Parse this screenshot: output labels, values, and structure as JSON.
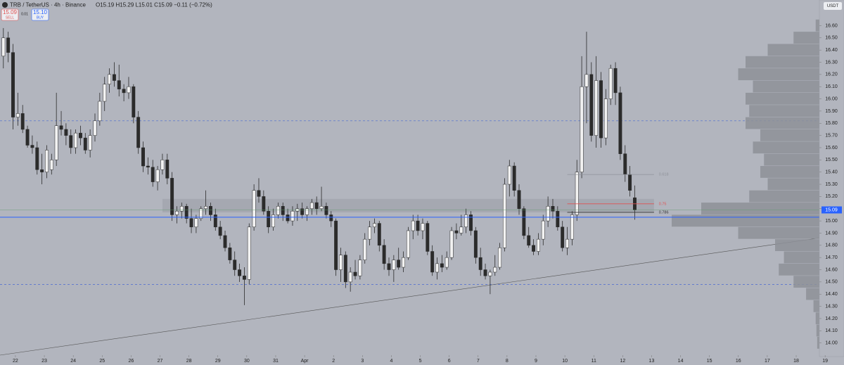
{
  "header": {
    "symbol": "TRB / TetherUS · 4h · Binance",
    "ohlc": "O15.19 H15.29 L15.01 C15.09 −0.11 (−0.72%)",
    "sell_price": "15.09",
    "sell": "SELL",
    "spread": "0.01",
    "buy_price": "15.10",
    "buy": "BUY",
    "currency": "USDT"
  },
  "chart_data": {
    "type": "candlestick",
    "candles": [
      [
        16.35,
        16.58,
        16.25,
        16.5
      ],
      [
        16.5,
        16.55,
        16.3,
        16.38
      ],
      [
        16.38,
        16.45,
        15.75,
        15.85
      ],
      [
        15.85,
        16.05,
        15.78,
        15.88
      ],
      [
        15.88,
        15.95,
        15.72,
        15.75
      ],
      [
        15.75,
        15.78,
        15.6,
        15.62
      ],
      [
        15.62,
        15.7,
        15.55,
        15.6
      ],
      [
        15.6,
        15.65,
        15.38,
        15.42
      ],
      [
        15.42,
        15.55,
        15.3,
        15.4
      ],
      [
        15.4,
        15.62,
        15.35,
        15.58
      ],
      [
        15.42,
        15.55,
        15.38,
        15.5
      ],
      [
        15.5,
        16.05,
        15.45,
        15.78
      ],
      [
        15.78,
        15.9,
        15.7,
        15.75
      ],
      [
        15.75,
        15.8,
        15.62,
        15.7
      ],
      [
        15.7,
        15.75,
        15.55,
        15.6
      ],
      [
        15.6,
        15.75,
        15.55,
        15.72
      ],
      [
        15.72,
        15.78,
        15.62,
        15.68
      ],
      [
        15.68,
        15.72,
        15.55,
        15.58
      ],
      [
        15.58,
        15.75,
        15.52,
        15.7
      ],
      [
        15.7,
        15.88,
        15.65,
        15.82
      ],
      [
        15.82,
        16.05,
        15.78,
        15.98
      ],
      [
        15.98,
        16.18,
        15.9,
        16.12
      ],
      [
        16.12,
        16.25,
        16.05,
        16.2
      ],
      [
        16.2,
        16.3,
        16.1,
        16.15
      ],
      [
        16.15,
        16.28,
        16.02,
        16.08
      ],
      [
        16.08,
        16.12,
        15.98,
        16.05
      ],
      [
        16.05,
        16.18,
        16.0,
        16.1
      ],
      [
        16.1,
        16.12,
        15.8,
        15.85
      ],
      [
        15.85,
        15.9,
        15.55,
        15.6
      ],
      [
        15.6,
        15.65,
        15.4,
        15.45
      ],
      [
        15.45,
        15.52,
        15.38,
        15.44
      ],
      [
        15.44,
        15.5,
        15.28,
        15.32
      ],
      [
        15.32,
        15.45,
        15.25,
        15.42
      ],
      [
        15.42,
        15.55,
        15.38,
        15.5
      ],
      [
        15.5,
        15.55,
        15.3,
        15.35
      ],
      [
        15.35,
        15.4,
        15.0,
        15.05
      ],
      [
        15.05,
        15.12,
        14.98,
        15.08
      ],
      [
        15.08,
        15.15,
        15.02,
        15.12
      ],
      [
        15.12,
        15.14,
        14.98,
        15.02
      ],
      [
        15.02,
        15.1,
        14.9,
        14.95
      ],
      [
        14.95,
        15.05,
        14.9,
        15.02
      ],
      [
        15.02,
        15.12,
        15.0,
        15.1
      ],
      [
        15.1,
        15.25,
        15.05,
        15.12
      ],
      [
        15.12,
        15.15,
        15.0,
        15.05
      ],
      [
        15.05,
        15.1,
        14.92,
        14.95
      ],
      [
        14.95,
        15.0,
        14.85,
        14.88
      ],
      [
        14.88,
        14.92,
        14.75,
        14.78
      ],
      [
        14.78,
        14.82,
        14.65,
        14.68
      ],
      [
        14.68,
        14.75,
        14.55,
        14.6
      ],
      [
        14.6,
        14.65,
        14.5,
        14.55
      ],
      [
        14.55,
        14.62,
        14.31,
        14.52
      ],
      [
        14.52,
        14.98,
        14.48,
        14.95
      ],
      [
        14.95,
        15.3,
        14.92,
        15.25
      ],
      [
        15.25,
        15.35,
        15.15,
        15.2
      ],
      [
        15.2,
        15.25,
        15.05,
        15.08
      ],
      [
        15.08,
        15.12,
        14.9,
        14.95
      ],
      [
        14.95,
        15.1,
        14.92,
        15.05
      ],
      [
        15.05,
        15.15,
        15.02,
        15.12
      ],
      [
        15.12,
        15.15,
        15.0,
        15.05
      ],
      [
        15.05,
        15.1,
        14.98,
        15.0
      ],
      [
        15.0,
        15.12,
        14.96,
        15.08
      ],
      [
        15.08,
        15.14,
        15.0,
        15.1
      ],
      [
        15.1,
        15.15,
        15.02,
        15.05
      ],
      [
        15.05,
        15.12,
        15.0,
        15.1
      ],
      [
        15.1,
        15.18,
        15.05,
        15.15
      ],
      [
        15.15,
        15.2,
        15.05,
        15.1
      ],
      [
        15.1,
        15.28,
        15.08,
        15.12
      ],
      [
        15.12,
        15.15,
        15.02,
        15.05
      ],
      [
        15.05,
        15.08,
        14.95,
        15.0
      ],
      [
        15.0,
        15.02,
        14.55,
        14.6
      ],
      [
        14.6,
        14.78,
        14.5,
        14.72
      ],
      [
        14.72,
        14.75,
        14.45,
        14.5
      ],
      [
        14.5,
        14.62,
        14.42,
        14.58
      ],
      [
        14.58,
        14.68,
        14.52,
        14.55
      ],
      [
        14.55,
        14.72,
        14.52,
        14.68
      ],
      [
        14.68,
        14.9,
        14.65,
        14.85
      ],
      [
        14.85,
        15.0,
        14.8,
        14.95
      ],
      [
        14.95,
        15.02,
        14.9,
        14.98
      ],
      [
        14.98,
        15.0,
        14.75,
        14.8
      ],
      [
        14.8,
        14.85,
        14.6,
        14.65
      ],
      [
        14.65,
        14.7,
        14.55,
        14.6
      ],
      [
        14.6,
        14.72,
        14.5,
        14.68
      ],
      [
        14.68,
        14.78,
        14.6,
        14.62
      ],
      [
        14.62,
        14.75,
        14.58,
        14.7
      ],
      [
        14.7,
        14.95,
        14.68,
        14.92
      ],
      [
        14.92,
        15.05,
        14.85,
        15.0
      ],
      [
        15.0,
        15.05,
        14.88,
        14.92
      ],
      [
        14.92,
        15.02,
        14.85,
        14.98
      ],
      [
        14.98,
        15.0,
        14.72,
        14.75
      ],
      [
        14.75,
        14.8,
        14.55,
        14.58
      ],
      [
        14.58,
        14.7,
        14.52,
        14.65
      ],
      [
        14.65,
        14.72,
        14.58,
        14.62
      ],
      [
        14.62,
        14.75,
        14.6,
        14.7
      ],
      [
        14.7,
        14.95,
        14.68,
        14.92
      ],
      [
        14.92,
        14.98,
        14.85,
        14.9
      ],
      [
        14.9,
        15.05,
        14.88,
        14.95
      ],
      [
        14.95,
        15.1,
        14.9,
        15.05
      ],
      [
        15.05,
        15.08,
        14.88,
        14.92
      ],
      [
        14.92,
        14.95,
        14.65,
        14.7
      ],
      [
        14.7,
        14.78,
        14.55,
        14.6
      ],
      [
        14.6,
        14.65,
        14.52,
        14.55
      ],
      [
        14.55,
        14.6,
        14.4,
        14.58
      ],
      [
        14.58,
        14.72,
        14.55,
        14.62
      ],
      [
        14.62,
        14.82,
        14.6,
        14.78
      ],
      [
        14.78,
        15.35,
        14.75,
        15.3
      ],
      [
        15.3,
        15.5,
        15.2,
        15.45
      ],
      [
        15.45,
        15.48,
        15.2,
        15.25
      ],
      [
        15.25,
        15.3,
        15.05,
        15.1
      ],
      [
        15.1,
        15.12,
        14.85,
        14.88
      ],
      [
        14.88,
        14.95,
        14.78,
        14.8
      ],
      [
        14.8,
        14.85,
        14.72,
        14.75
      ],
      [
        14.75,
        14.9,
        14.72,
        14.85
      ],
      [
        14.85,
        15.05,
        14.8,
        15.0
      ],
      [
        15.0,
        15.2,
        14.95,
        15.12
      ],
      [
        15.12,
        15.18,
        15.02,
        15.08
      ],
      [
        15.08,
        15.12,
        14.92,
        14.95
      ],
      [
        14.95,
        15.0,
        14.75,
        14.78
      ],
      [
        14.78,
        14.95,
        14.72,
        14.85
      ],
      [
        14.85,
        15.08,
        14.8,
        15.05
      ],
      [
        15.05,
        15.5,
        15.0,
        15.4
      ],
      [
        15.4,
        16.35,
        15.35,
        16.1
      ],
      [
        16.1,
        16.55,
        15.8,
        16.2
      ],
      [
        16.2,
        16.3,
        15.65,
        15.7
      ],
      [
        15.7,
        16.35,
        15.6,
        16.15
      ],
      [
        16.15,
        16.22,
        15.6,
        15.68
      ],
      [
        15.68,
        16.08,
        15.62,
        16.0
      ],
      [
        16.0,
        16.28,
        15.95,
        16.25
      ],
      [
        16.25,
        16.3,
        15.95,
        16.05
      ],
      [
        16.05,
        16.1,
        15.5,
        15.55
      ],
      [
        15.55,
        15.62,
        15.32,
        15.38
      ],
      [
        15.38,
        15.45,
        15.2,
        15.25
      ],
      [
        15.19,
        15.29,
        15.01,
        15.09
      ]
    ],
    "xlim": [
      -0.7,
      171.5
    ],
    "xticks": [
      {
        "value": 2.5,
        "label": "22"
      },
      {
        "value": 8.5,
        "label": "23"
      },
      {
        "value": 14.5,
        "label": "24"
      },
      {
        "value": 20.5,
        "label": "25"
      },
      {
        "value": 26.5,
        "label": "26"
      },
      {
        "value": 32.5,
        "label": "27"
      },
      {
        "value": 38.5,
        "label": "28"
      },
      {
        "value": 44.5,
        "label": "29"
      },
      {
        "value": 50.5,
        "label": "30"
      },
      {
        "value": 56.5,
        "label": "31"
      },
      {
        "value": 62.5,
        "label": "Apr"
      },
      {
        "value": 68.5,
        "label": "2"
      },
      {
        "value": 74.5,
        "label": "3"
      },
      {
        "value": 80.5,
        "label": "4"
      },
      {
        "value": 86.5,
        "label": "5"
      },
      {
        "value": 92.5,
        "label": "6"
      },
      {
        "value": 98.5,
        "label": "7"
      },
      {
        "value": 104.5,
        "label": "8"
      },
      {
        "value": 110.5,
        "label": "9"
      },
      {
        "value": 116.5,
        "label": "10"
      },
      {
        "value": 122.5,
        "label": "11"
      },
      {
        "value": 128.5,
        "label": "12"
      },
      {
        "value": 134.5,
        "label": "13"
      },
      {
        "value": 140.5,
        "label": "14"
      },
      {
        "value": 146.5,
        "label": "15"
      },
      {
        "value": 152.5,
        "label": "16"
      },
      {
        "value": 158.5,
        "label": "17"
      },
      {
        "value": 164.5,
        "label": "18"
      },
      {
        "value": 170.5,
        "label": "19"
      }
    ],
    "ylim": [
      13.9,
      16.81
    ],
    "yticks": [
      {
        "value": 14,
        "label": "14.00"
      },
      {
        "value": 14.1,
        "label": "14.10"
      },
      {
        "value": 14.2,
        "label": "14.20"
      },
      {
        "value": 14.3,
        "label": "14.30"
      },
      {
        "value": 14.4,
        "label": "14.40"
      },
      {
        "value": 14.5,
        "label": "14.50"
      },
      {
        "value": 14.6,
        "label": "14.60"
      },
      {
        "value": 14.7,
        "label": "14.70"
      },
      {
        "value": 14.8,
        "label": "14.80"
      },
      {
        "value": 14.9,
        "label": "14.90"
      },
      {
        "value": 15,
        "label": "15.00"
      },
      {
        "value": 15.1,
        "label": "15.10"
      },
      {
        "value": 15.2,
        "label": "15.20"
      },
      {
        "value": 15.3,
        "label": "15.30"
      },
      {
        "value": 15.4,
        "label": "15.40"
      },
      {
        "value": 15.5,
        "label": "15.50"
      },
      {
        "value": 15.6,
        "label": "15.60"
      },
      {
        "value": 15.7,
        "label": "15.70"
      },
      {
        "value": 15.8,
        "label": "15.80"
      },
      {
        "value": 15.9,
        "label": "15.90"
      },
      {
        "value": 16,
        "label": "16.00"
      },
      {
        "value": 16.1,
        "label": "16.10"
      },
      {
        "value": 16.2,
        "label": "16.20"
      },
      {
        "value": 16.3,
        "label": "16.30"
      },
      {
        "value": 16.4,
        "label": "16.40"
      },
      {
        "value": 16.5,
        "label": "16.50"
      },
      {
        "value": 16.6,
        "label": "16.60"
      }
    ],
    "last_price": 15.09,
    "support_line": 15.03,
    "dashed_levels": [
      15.82,
      14.48
    ],
    "zone": {
      "from": 33,
      "to": 135,
      "low": 15.07,
      "high": 15.18
    },
    "fib_levels": [
      {
        "value": 15.38,
        "label": "0.618",
        "color": "#8e9199"
      },
      {
        "value": 15.14,
        "label": "0.75",
        "color": "#e05252"
      },
      {
        "value": 15.07,
        "label": "0.786",
        "color": "#333333"
      }
    ],
    "trendline": {
      "x": [
        -0.7,
        169.3
      ],
      "y": [
        13.9,
        14.86
      ]
    },
    "volume_profile": {
      "levels": [
        14.0,
        14.1,
        14.2,
        14.3,
        14.4,
        14.5,
        14.6,
        14.7,
        14.8,
        14.9,
        15.0,
        15.1,
        15.2,
        15.3,
        15.4,
        15.5,
        15.6,
        15.7,
        15.8,
        15.9,
        16.0,
        16.1,
        16.2,
        16.3,
        16.4,
        16.5,
        16.6
      ],
      "values": [
        3,
        4,
        5,
        8,
        18,
        35,
        55,
        48,
        60,
        110,
        200,
        160,
        95,
        70,
        80,
        75,
        90,
        80,
        100,
        95,
        100,
        90,
        110,
        100,
        70,
        35,
        5
      ]
    }
  }
}
